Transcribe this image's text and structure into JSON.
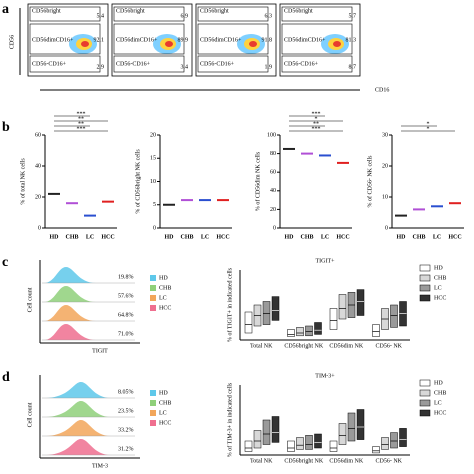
{
  "panel_a": {
    "label": "a",
    "y_axis": "CD56",
    "x_axis": "CD16",
    "plots": [
      {
        "top": "CD56bright",
        "mid": "CD56dimCD16+",
        "bottom": "CD56-CD16+",
        "values": [
          "5.4",
          "92.1",
          "2.9"
        ]
      },
      {
        "top": "CD56bright",
        "mid": "CD56dimCD16+",
        "bottom": "CD56-CD16+",
        "values": [
          "6.9",
          "89.9",
          "3.4"
        ]
      },
      {
        "top": "CD56bright",
        "mid": "CD56dimCD16+",
        "bottom": "CD56-CD16+",
        "values": [
          "6.3",
          "91.8",
          "1.9"
        ]
      },
      {
        "top": "CD56bright",
        "mid": "CD56dimCD16+",
        "bottom": "CD56-CD16+",
        "values": [
          "5.7",
          "81.3",
          "8.7"
        ]
      }
    ]
  },
  "panel_b": {
    "label": "b",
    "categories": [
      "HD",
      "CHB",
      "LC",
      "HCC"
    ],
    "colors": [
      "#222222",
      "#b04fd6",
      "#2a4fd0",
      "#e02020"
    ],
    "plots": [
      {
        "ylabel": "% of total NK cells",
        "ylim": [
          0,
          60
        ],
        "yticks": [
          0,
          20,
          40,
          60
        ],
        "means": [
          22,
          16,
          8,
          17
        ],
        "sig": [
          "***",
          "**",
          "**",
          "***"
        ]
      },
      {
        "ylabel": "% of CD56bright NK cells",
        "ylim": [
          0,
          20
        ],
        "yticks": [
          0,
          5,
          10,
          15,
          20
        ],
        "means": [
          5,
          6,
          6,
          6
        ]
      },
      {
        "ylabel": "% of CD56dim NK cells",
        "ylim": [
          0,
          100
        ],
        "yticks": [
          0,
          20,
          40,
          60,
          80,
          100
        ],
        "means": [
          85,
          80,
          78,
          70
        ],
        "sig": [
          "***",
          "**",
          "*",
          "***"
        ]
      },
      {
        "ylabel": "% of CD56- NK cells",
        "ylim": [
          0,
          30
        ],
        "yticks": [
          0,
          10,
          20,
          30
        ],
        "means": [
          4,
          6,
          7,
          8
        ],
        "sig": [
          "*",
          "*"
        ]
      }
    ]
  },
  "panel_c": {
    "label": "c",
    "y_axis": "Cell count",
    "x_axis": "TIGIT",
    "legend": [
      "HD",
      "CHB",
      "LC",
      "HCC"
    ],
    "colors": [
      "#5ec8ea",
      "#8fd07a",
      "#f2a65a",
      "#ef6f8f"
    ],
    "percents": [
      "19.8%",
      "57.6%",
      "64.8%",
      "71.0%"
    ],
    "box": {
      "title": "TIGIT+",
      "ylabel": "% of TIGIT+ in indicated cells",
      "groups": [
        "Total NK",
        "CD56bright NK",
        "CD56dim NK",
        "CD56- NK"
      ],
      "ylim": [
        0,
        100
      ],
      "series": [
        {
          "name": "HD",
          "color": "#ffffff",
          "q1": [
            10,
            5,
            15,
            5
          ],
          "median": [
            22,
            8,
            28,
            12
          ],
          "q3": [
            40,
            15,
            45,
            22
          ]
        },
        {
          "name": "CHB",
          "color": "#d8d8d8",
          "q1": [
            20,
            6,
            30,
            15
          ],
          "median": [
            35,
            10,
            45,
            30
          ],
          "q3": [
            50,
            18,
            65,
            45
          ]
        },
        {
          "name": "LC",
          "color": "#9a9a9a",
          "q1": [
            22,
            6,
            32,
            18
          ],
          "median": [
            38,
            12,
            50,
            35
          ],
          "q3": [
            55,
            20,
            68,
            50
          ]
        },
        {
          "name": "HCC",
          "color": "#333333",
          "q1": [
            28,
            8,
            35,
            20
          ],
          "median": [
            42,
            14,
            55,
            38
          ],
          "q3": [
            62,
            25,
            72,
            55
          ]
        }
      ]
    }
  },
  "panel_d": {
    "label": "d",
    "y_axis": "Cell count",
    "x_axis": "TIM-3",
    "legend": [
      "HD",
      "CHB",
      "LC",
      "HCC"
    ],
    "colors": [
      "#5ec8ea",
      "#8fd07a",
      "#f2a65a",
      "#ef6f8f"
    ],
    "percents": [
      "8.05%",
      "23.5%",
      "33.2%",
      "31.2%"
    ],
    "box": {
      "title": "TIM-3+",
      "ylabel": "% of TIM-3+ in indicated cells",
      "groups": [
        "Total NK",
        "CD56bright NK",
        "CD56dim NK",
        "CD56- NK"
      ],
      "ylim": [
        0,
        100
      ],
      "series": [
        {
          "name": "HD",
          "color": "#ffffff",
          "q1": [
            5,
            5,
            5,
            3
          ],
          "median": [
            10,
            10,
            10,
            6
          ],
          "q3": [
            20,
            20,
            20,
            12
          ]
        },
        {
          "name": "CHB",
          "color": "#d8d8d8",
          "q1": [
            10,
            8,
            15,
            8
          ],
          "median": [
            20,
            14,
            28,
            15
          ],
          "q3": [
            35,
            25,
            45,
            25
          ]
        },
        {
          "name": "LC",
          "color": "#9a9a9a",
          "q1": [
            15,
            8,
            20,
            10
          ],
          "median": [
            30,
            15,
            38,
            20
          ],
          "q3": [
            50,
            28,
            60,
            32
          ]
        },
        {
          "name": "HCC",
          "color": "#333333",
          "q1": [
            18,
            10,
            22,
            12
          ],
          "median": [
            32,
            18,
            40,
            22
          ],
          "q3": [
            55,
            30,
            65,
            38
          ]
        }
      ]
    }
  }
}
